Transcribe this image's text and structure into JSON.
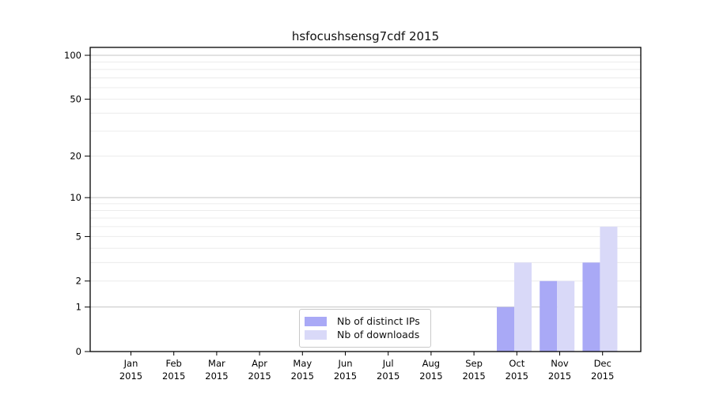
{
  "chart_data": {
    "type": "bar",
    "title": "hsfocushsensg7cdf 2015",
    "categories": [
      "Jan",
      "Feb",
      "Mar",
      "Apr",
      "May",
      "Jun",
      "Jul",
      "Aug",
      "Sep",
      "Oct",
      "Nov",
      "Dec"
    ],
    "year_label": "2015",
    "series": [
      {
        "name": "Nb of distinct IPs",
        "color": "#a9a9f6",
        "values": [
          0,
          0,
          0,
          0,
          0,
          0,
          0,
          0,
          0,
          1,
          2,
          3
        ]
      },
      {
        "name": "Nb of downloads",
        "color": "#d9d9f8",
        "values": [
          0,
          0,
          0,
          0,
          0,
          0,
          0,
          0,
          0,
          3,
          2,
          6
        ]
      }
    ],
    "yticks": [
      0,
      1,
      2,
      5,
      10,
      20,
      50,
      100
    ],
    "minor_gridlines": [
      2,
      3,
      4,
      5,
      6,
      7,
      8,
      9,
      20,
      30,
      40,
      50,
      60,
      70,
      80,
      90
    ],
    "major_gridlines": [
      1,
      10,
      100
    ],
    "scale": "log1p",
    "ylim": [
      0,
      113
    ],
    "xlabel": "",
    "ylabel": "",
    "grid": "on",
    "legend_position": "bottom-center-inside",
    "colors": {
      "major_grid": "#c4c4c4",
      "minor_grid": "#ececec",
      "spine": "#000000"
    }
  }
}
